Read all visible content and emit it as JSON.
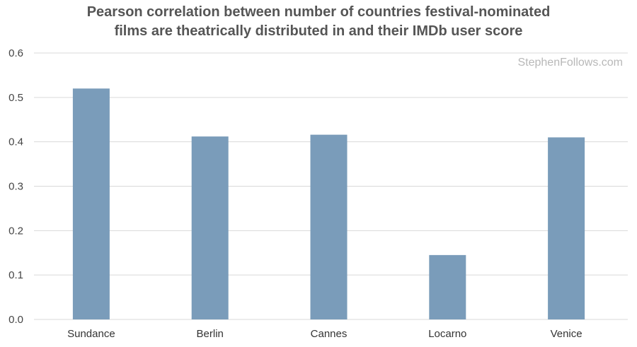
{
  "chart_data": {
    "type": "bar",
    "title_lines": [
      "Pearson correlation between number of countries festival-nominated",
      "films are theatrically distributed in and their IMDb user score"
    ],
    "categories": [
      "Sundance",
      "Berlin",
      "Cannes",
      "Locarno",
      "Venice"
    ],
    "values": [
      0.52,
      0.412,
      0.416,
      0.145,
      0.41
    ],
    "yticks": [
      "0.0",
      "0.1",
      "0.2",
      "0.3",
      "0.4",
      "0.5",
      "0.6"
    ],
    "ylim": [
      0,
      0.6
    ],
    "grid": true,
    "legend": "none",
    "bar_color": "#7a9cba",
    "grid_color": "#d9d9d9"
  },
  "watermark": "StephenFollows.com"
}
